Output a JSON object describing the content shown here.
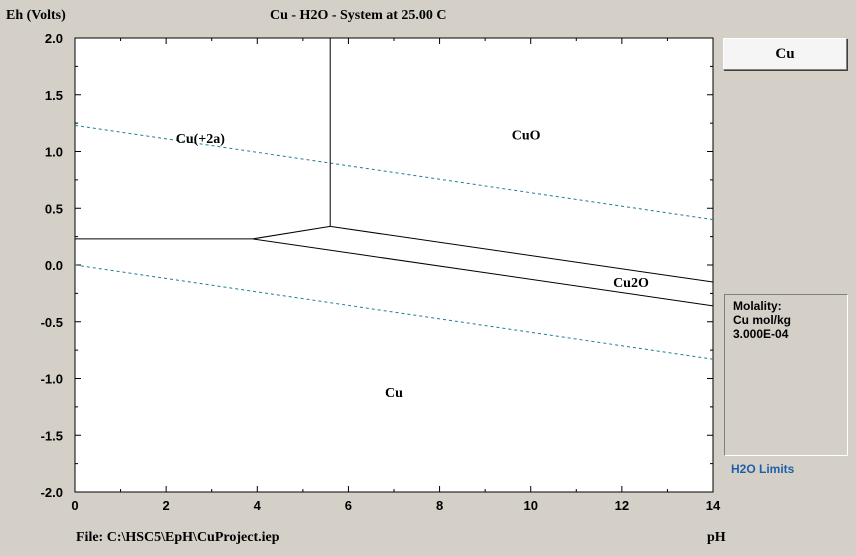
{
  "header": {
    "y_axis_label": "Eh (Volts)",
    "title": "Cu - H2O - System at 25.00 C"
  },
  "footer": {
    "file_info": "File: C:\\HSC5\\EpH\\CuProject.iep",
    "x_axis_label": "pH"
  },
  "side_panel": {
    "element_button_label": "Cu",
    "molality_title": "Molality:",
    "molality_species": "Cu mol/kg",
    "molality_value": "3.000E-04",
    "h2o_limits_label": "H2O Limits",
    "h2o_limits_color": "#1f5fa8"
  },
  "chart_data": {
    "type": "line",
    "title": "Cu - H2O - System at 25.00 C",
    "xlabel": "pH",
    "ylabel": "Eh (Volts)",
    "xlim": [
      0,
      14
    ],
    "ylim": [
      -2.0,
      2.0
    ],
    "x_ticks": [
      0,
      2,
      4,
      6,
      8,
      10,
      12,
      14
    ],
    "y_ticks": [
      2.0,
      1.5,
      1.0,
      0.5,
      0.0,
      -0.5,
      -1.0,
      -1.5,
      -2.0
    ],
    "x_tick_labels": [
      "0",
      "2",
      "4",
      "6",
      "8",
      "10",
      "12",
      "14"
    ],
    "y_tick_labels": [
      "2.0",
      "1.5",
      "1.0",
      "0.5",
      "0.0",
      "-0.5",
      "-1.0",
      "-1.5",
      "-2.0"
    ],
    "grid": false,
    "boundaries": [
      {
        "points": [
          [
            0,
            0.23
          ],
          [
            3.9,
            0.23
          ]
        ]
      },
      {
        "points": [
          [
            3.9,
            0.23
          ],
          [
            5.6,
            0.34
          ]
        ]
      },
      {
        "points": [
          [
            5.6,
            0.34
          ],
          [
            5.6,
            2.0
          ]
        ]
      },
      {
        "points": [
          [
            5.6,
            0.34
          ],
          [
            14,
            -0.15
          ]
        ]
      },
      {
        "points": [
          [
            3.9,
            0.23
          ],
          [
            14,
            -0.36
          ]
        ]
      }
    ],
    "water_limits": [
      {
        "points": [
          [
            0,
            1.23
          ],
          [
            14,
            0.4
          ]
        ]
      },
      {
        "points": [
          [
            0,
            0.0
          ],
          [
            14,
            -0.83
          ]
        ]
      }
    ],
    "water_limit_color": "#1f7f8f",
    "regions": [
      {
        "label": "Cu(+2a)",
        "x": 2.75,
        "y": 1.12
      },
      {
        "label": "CuO",
        "x": 9.9,
        "y": 1.15
      },
      {
        "label": "Cu2O",
        "x": 12.2,
        "y": -0.15
      },
      {
        "label": "Cu",
        "x": 7.0,
        "y": -1.12
      }
    ]
  }
}
